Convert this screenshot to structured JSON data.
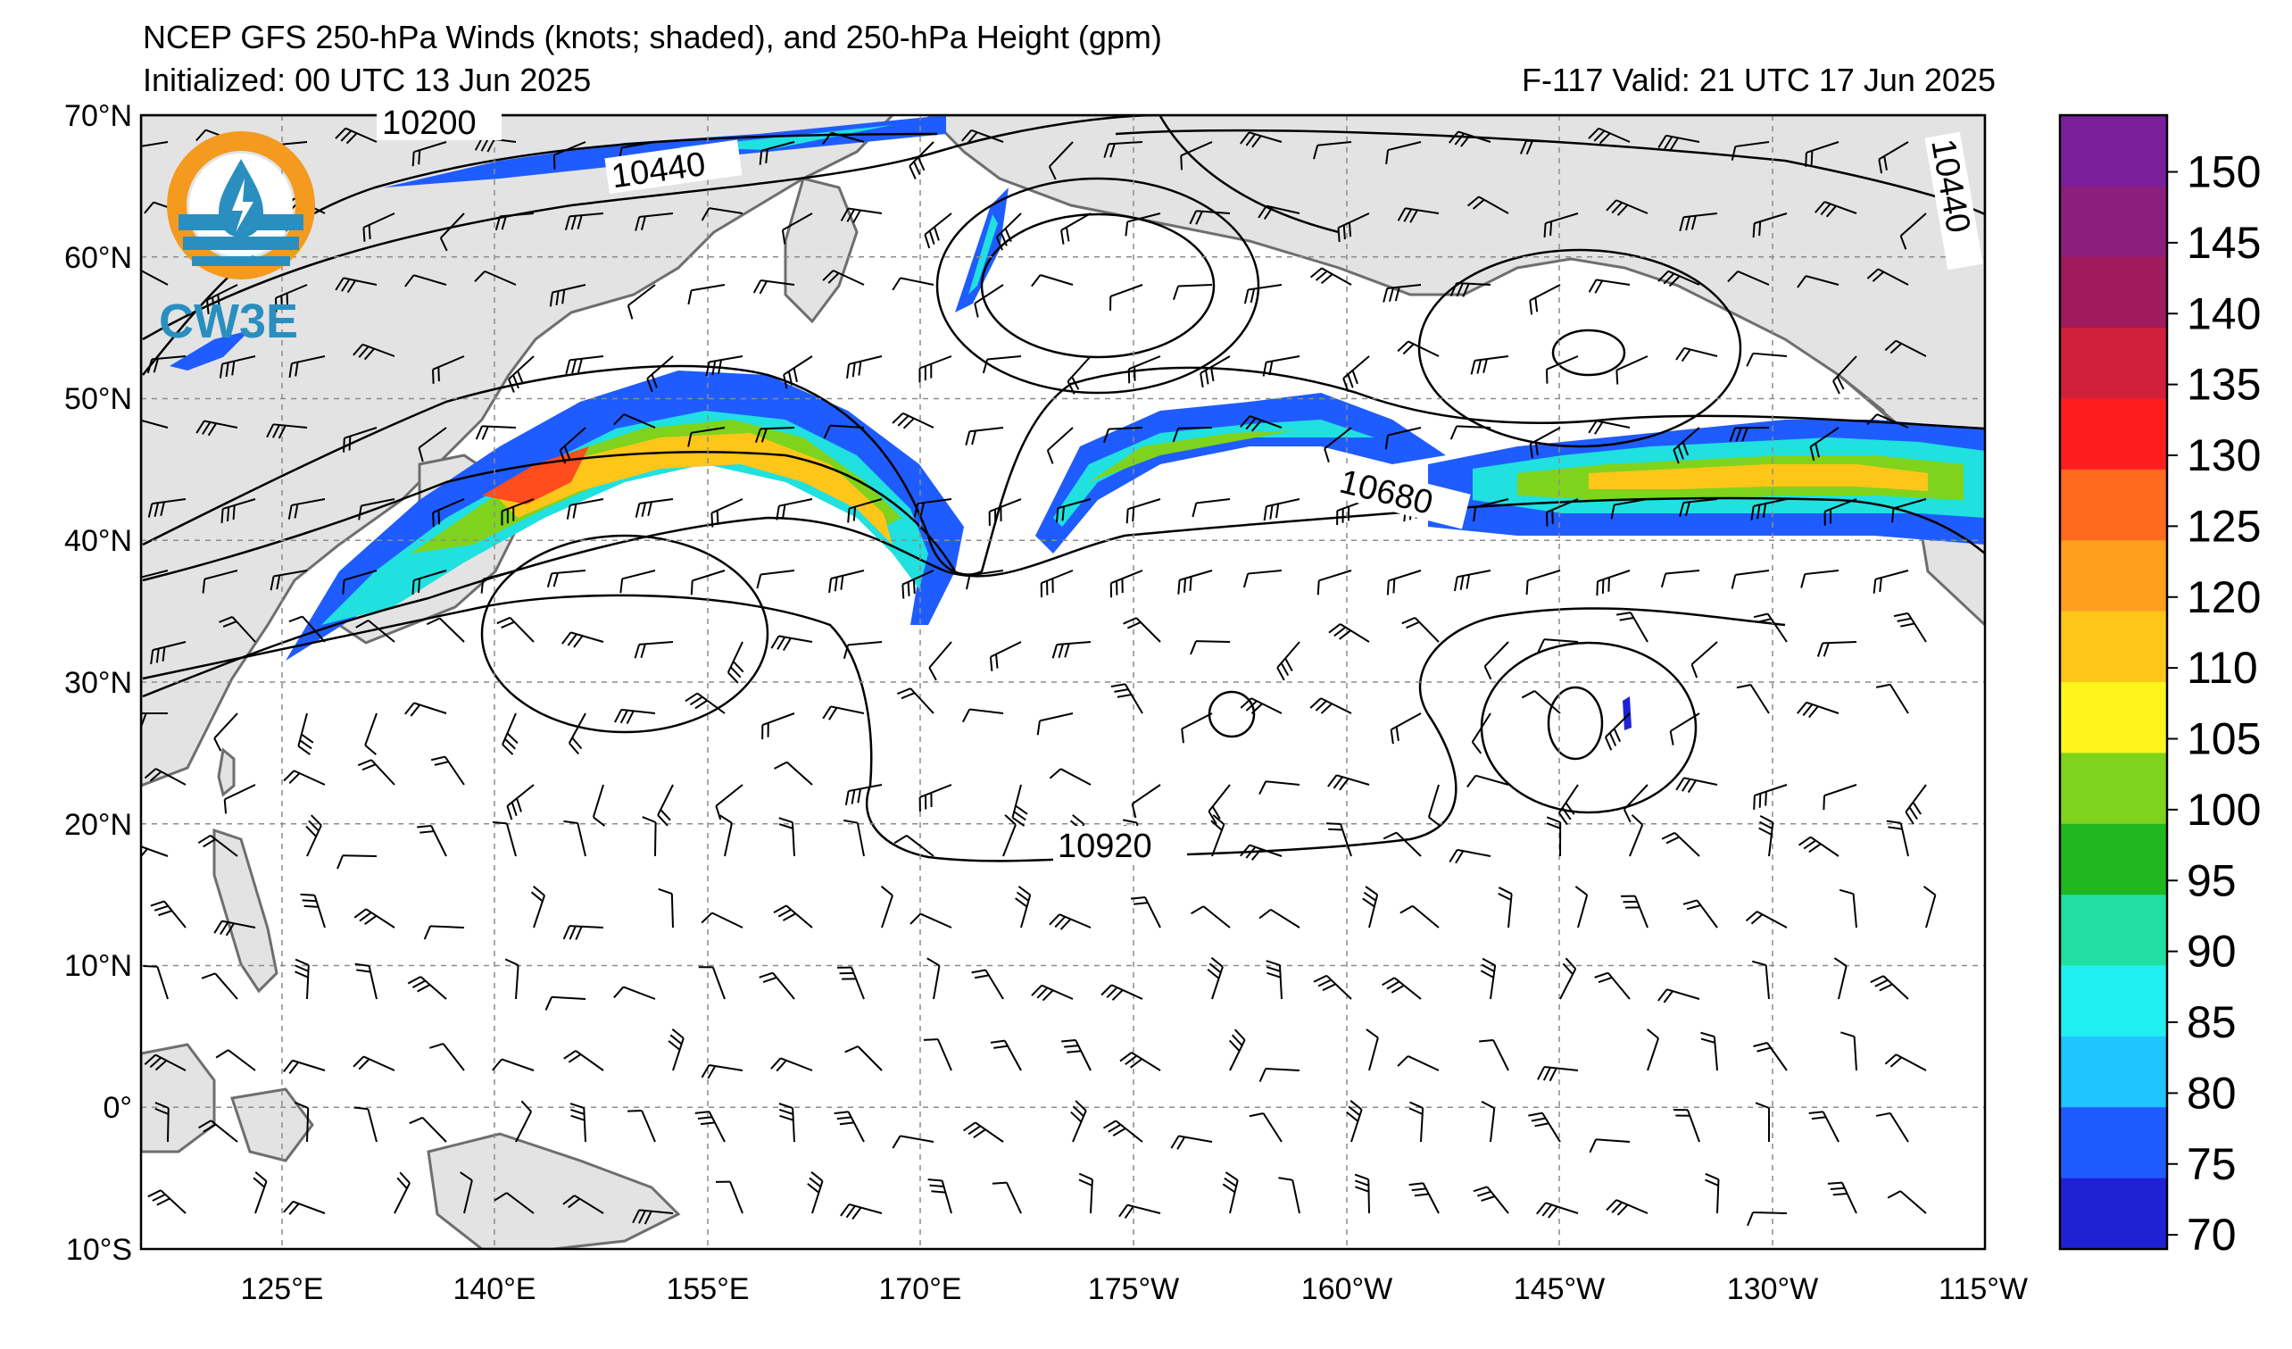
{
  "header": {
    "title": "NCEP GFS 250-hPa Winds (knots; shaded), and 250-hPa Height (gpm)",
    "initialized": "Initialized: 00 UTC 13 Jun 2025",
    "valid": "F-117  Valid: 21 UTC 17 Jun 2025"
  },
  "logo": {
    "text": "CW3E",
    "ring_color": "#f39a1f",
    "wave_color": "#2a8fbf",
    "icon": "water-drop-lightning-icon"
  },
  "axes": {
    "lat_labels": [
      "70°N",
      "60°N",
      "50°N",
      "40°N",
      "30°N",
      "20°N",
      "10°N",
      "0°",
      "10°S"
    ],
    "lon_labels": [
      "125°E",
      "140°E",
      "155°E",
      "170°E",
      "175°W",
      "160°W",
      "145°W",
      "130°W",
      "115°W"
    ]
  },
  "contour_labels": [
    "10200",
    "10440",
    "10440",
    "10680",
    "10920"
  ],
  "colorbar": {
    "ticks": [
      "150",
      "145",
      "140",
      "135",
      "130",
      "125",
      "120",
      "110",
      "105",
      "100",
      "95",
      "90",
      "85",
      "80",
      "75",
      "70"
    ],
    "colors": [
      "#7a1f9a",
      "#8c1f7e",
      "#a01a5e",
      "#d0203a",
      "#ff1d1d",
      "#ff6a1e",
      "#ff9f1c",
      "#ffc61a",
      "#fff51a",
      "#7fd31c",
      "#1fb81f",
      "#20dfa0",
      "#20f0f0",
      "#20c4ff",
      "#1f5cff",
      "#1f22d4"
    ]
  },
  "colors": {
    "land": "#e3e3e3",
    "coast": "#6e6e6e",
    "grid": "#8c8c8c",
    "contour": "#000000"
  }
}
